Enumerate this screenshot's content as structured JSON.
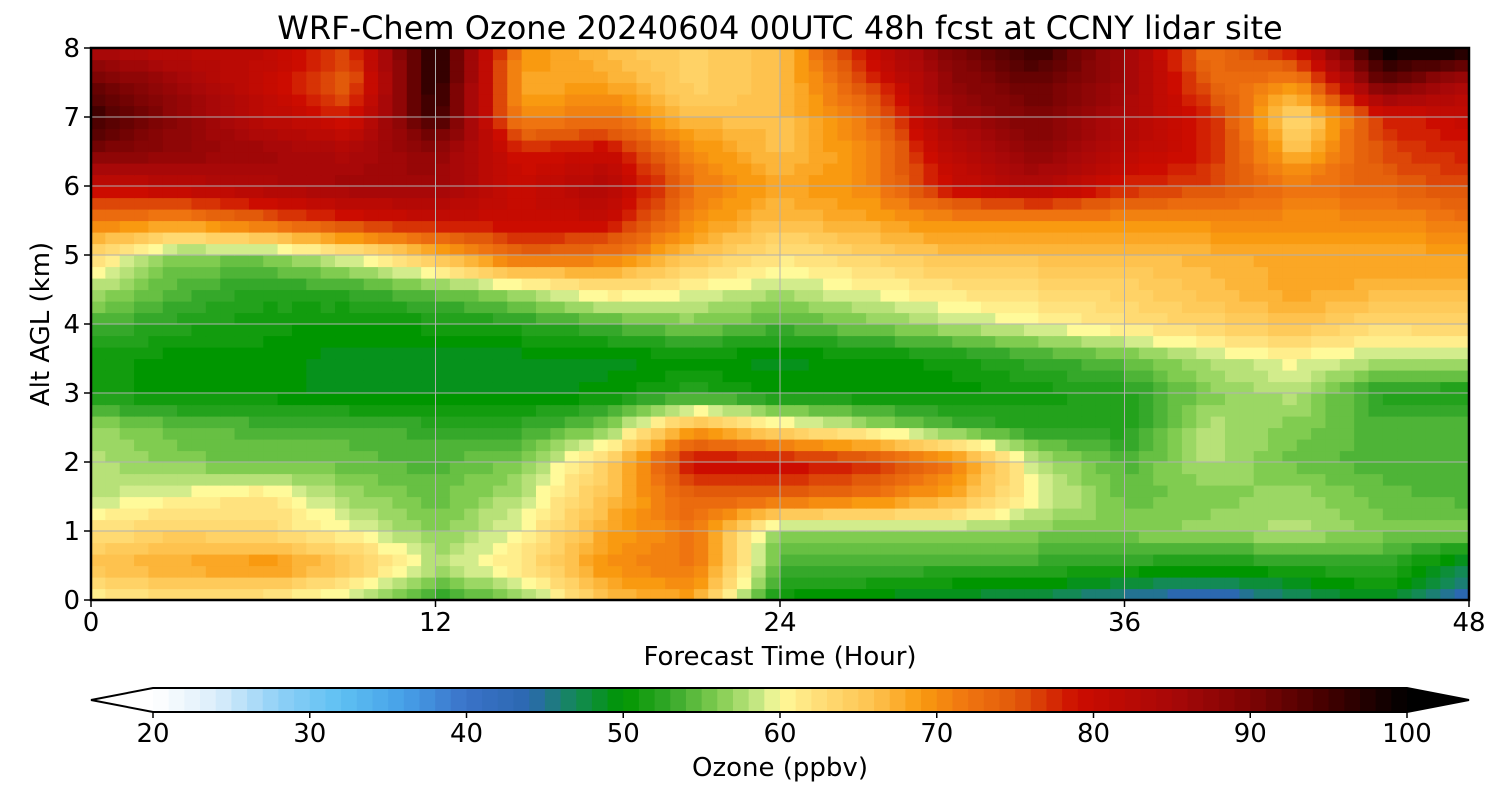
{
  "chart_data": {
    "type": "heatmap",
    "title": "WRF-Chem Ozone  20240604 00UTC 48h fcst at CCNY lidar site",
    "xlabel": "Forecast Time (Hour)",
    "ylabel": "Alt AGL (km)",
    "xlim": [
      0,
      48
    ],
    "ylim": [
      0,
      8
    ],
    "xticks": [
      0,
      12,
      24,
      36,
      48
    ],
    "yticks": [
      0,
      1,
      2,
      3,
      4,
      5,
      6,
      7,
      8
    ],
    "grid": true,
    "x": [
      0,
      3,
      6,
      9,
      12,
      15,
      18,
      21,
      24,
      27,
      30,
      33,
      36,
      39,
      42,
      45,
      48
    ],
    "y": [
      0,
      0.5,
      1,
      1.5,
      2,
      2.5,
      3,
      3.5,
      4,
      4.5,
      5,
      5.5,
      6,
      6.5,
      7,
      7.5,
      8
    ],
    "z": [
      [
        60,
        62,
        61,
        58,
        52,
        56,
        66,
        68,
        50,
        49,
        48,
        47,
        44,
        42,
        46,
        49,
        43
      ],
      [
        66,
        68,
        70,
        66,
        58,
        62,
        70,
        72,
        54,
        54,
        53,
        53,
        52,
        51,
        52,
        53,
        47
      ],
      [
        62,
        64,
        63,
        60,
        56,
        60,
        68,
        72,
        56,
        56,
        57,
        56,
        56,
        57,
        58,
        56,
        56
      ],
      [
        58,
        60,
        62,
        57,
        55,
        58,
        66,
        74,
        74,
        72,
        68,
        60,
        55,
        56,
        57,
        55,
        54
      ],
      [
        58,
        56,
        55,
        55,
        54,
        56,
        64,
        80,
        80,
        78,
        72,
        58,
        54,
        58,
        55,
        54,
        54
      ],
      [
        57,
        55,
        54,
        54,
        53,
        53,
        56,
        68,
        62,
        58,
        54,
        52,
        52,
        58,
        56,
        54,
        54
      ],
      [
        51,
        50,
        50,
        49,
        49,
        49,
        50,
        52,
        50,
        50,
        50,
        51,
        52,
        56,
        58,
        52,
        51
      ],
      [
        51,
        50,
        50,
        49,
        49,
        49,
        49,
        50,
        49,
        50,
        51,
        53,
        55,
        58,
        60,
        58,
        58
      ],
      [
        54,
        52,
        51,
        50,
        51,
        52,
        54,
        56,
        54,
        56,
        58,
        60,
        62,
        64,
        66,
        63,
        64
      ],
      [
        58,
        54,
        52,
        53,
        55,
        58,
        62,
        60,
        58,
        60,
        62,
        63,
        64,
        66,
        68,
        67,
        67
      ],
      [
        63,
        56,
        56,
        60,
        66,
        74,
        72,
        66,
        62,
        64,
        66,
        66,
        66,
        67,
        68,
        68,
        68
      ],
      [
        72,
        70,
        74,
        78,
        80,
        80,
        80,
        70,
        66,
        68,
        70,
        70,
        70,
        70,
        70,
        70,
        72
      ],
      [
        80,
        82,
        84,
        86,
        86,
        80,
        84,
        72,
        68,
        70,
        80,
        84,
        78,
        76,
        72,
        74,
        76
      ],
      [
        90,
        88,
        86,
        84,
        88,
        78,
        80,
        70,
        66,
        70,
        82,
        88,
        82,
        78,
        66,
        76,
        78
      ],
      [
        96,
        88,
        82,
        78,
        96,
        70,
        72,
        66,
        66,
        72,
        86,
        90,
        84,
        78,
        62,
        78,
        80
      ],
      [
        92,
        86,
        80,
        74,
        98,
        68,
        68,
        64,
        66,
        76,
        88,
        92,
        86,
        74,
        70,
        92,
        84
      ],
      [
        84,
        82,
        82,
        76,
        98,
        70,
        66,
        64,
        66,
        80,
        90,
        96,
        86,
        72,
        80,
        100,
        100
      ]
    ],
    "colorbar": {
      "label": "Ozone  (ppbv)",
      "min": 20,
      "max": 100,
      "ticks": [
        20,
        30,
        40,
        50,
        60,
        70,
        80,
        90,
        100
      ],
      "extend": "both"
    },
    "colormap": [
      [
        20,
        "#ffffff"
      ],
      [
        24,
        "#dbeefa"
      ],
      [
        28,
        "#8fd0f6"
      ],
      [
        32,
        "#5ec0f2"
      ],
      [
        36,
        "#46a0e8"
      ],
      [
        40,
        "#3a72c8"
      ],
      [
        44,
        "#2b68b0"
      ],
      [
        47,
        "#138a55"
      ],
      [
        50,
        "#009600"
      ],
      [
        53,
        "#35a82a"
      ],
      [
        56,
        "#80cc50"
      ],
      [
        59,
        "#d2ec8c"
      ],
      [
        60,
        "#fffa9a"
      ],
      [
        62,
        "#ffe27e"
      ],
      [
        66,
        "#fec24e"
      ],
      [
        69,
        "#f99a10"
      ],
      [
        72,
        "#ef7410"
      ],
      [
        75,
        "#e25a0a"
      ],
      [
        79,
        "#cc0c00"
      ],
      [
        85,
        "#a80808"
      ],
      [
        90,
        "#7e0404"
      ],
      [
        95,
        "#420000"
      ],
      [
        100,
        "#000000"
      ]
    ]
  }
}
